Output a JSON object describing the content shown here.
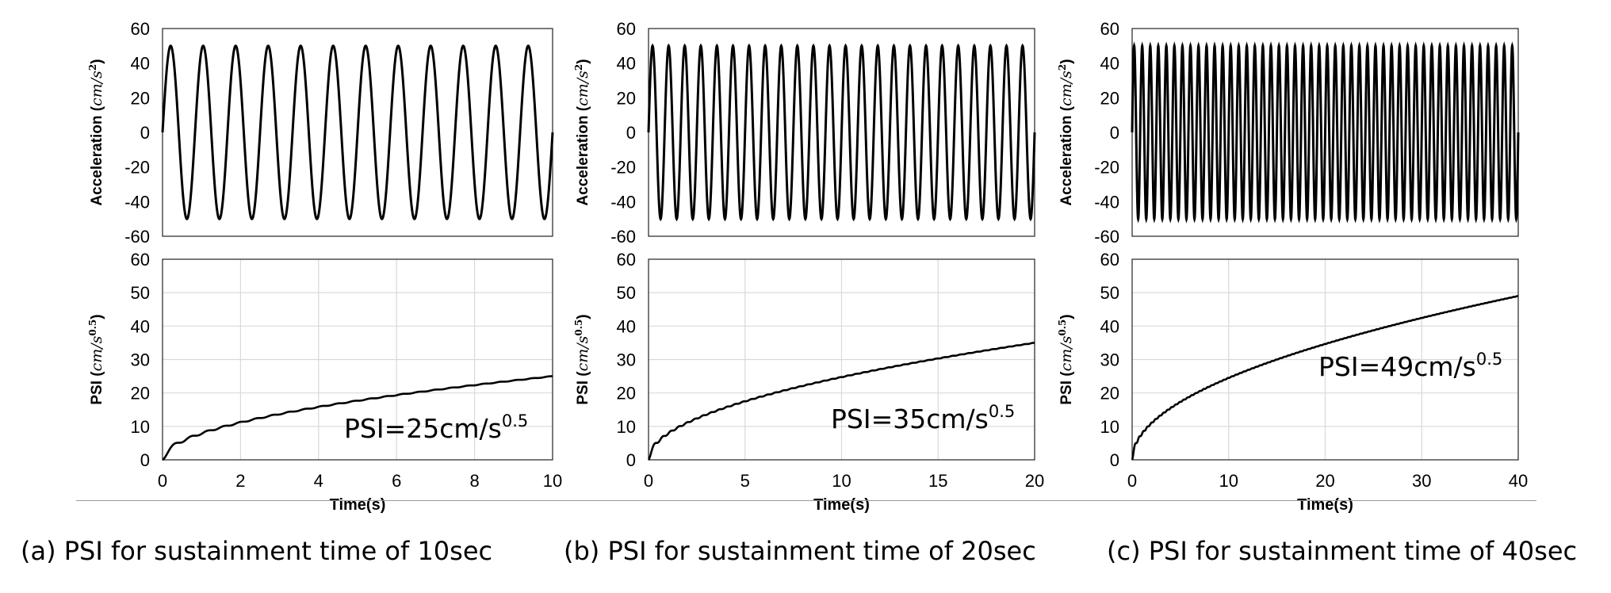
{
  "chart_data": [
    {
      "panel": "a",
      "type": "line",
      "title": "",
      "acceleration": {
        "ylabel": "Acceleration (cm/s²)",
        "ylim": [
          -60,
          60
        ],
        "yticks": [
          "60",
          "40",
          "20",
          "0",
          "-20",
          "-40",
          "-60"
        ],
        "amplitude": 50,
        "cycles": 12,
        "xlim": [
          0,
          10
        ]
      },
      "psi": {
        "ylabel": "PSI (cm/s^0.5)",
        "xlabel": "Time(s)",
        "ylim": [
          0,
          60
        ],
        "yticks": [
          "60",
          "50",
          "40",
          "30",
          "20",
          "10",
          "0"
        ],
        "xlim": [
          0,
          10
        ],
        "xticks": [
          "0",
          "2",
          "4",
          "6",
          "8",
          "10"
        ],
        "final_value": 25,
        "annotation": {
          "text": "PSI=25cm/s",
          "sup": "0.5"
        }
      },
      "caption": "(a) PSI for sustainment time of 10sec"
    },
    {
      "panel": "b",
      "type": "line",
      "title": "",
      "acceleration": {
        "ylabel": "Acceleration (cm/s²)",
        "ylim": [
          -60,
          60
        ],
        "yticks": [
          "60",
          "40",
          "20",
          "0",
          "-20",
          "-40",
          "-60"
        ],
        "amplitude": 50,
        "cycles": 24,
        "xlim": [
          0,
          20
        ]
      },
      "psi": {
        "ylabel": "PSI (cm/s^0.5)",
        "xlabel": "Time(s)",
        "ylim": [
          0,
          60
        ],
        "yticks": [
          "60",
          "50",
          "40",
          "30",
          "20",
          "10",
          "0"
        ],
        "xlim": [
          0,
          20
        ],
        "xticks": [
          "0",
          "5",
          "10",
          "15",
          "20"
        ],
        "final_value": 35,
        "annotation": {
          "text": "PSI=35cm/s",
          "sup": "0.5"
        }
      },
      "caption": "(b) PSI for sustainment time of 20sec"
    },
    {
      "panel": "c",
      "type": "line",
      "title": "",
      "acceleration": {
        "ylabel": "Acceleration (cm/s²)",
        "ylim": [
          -60,
          60
        ],
        "yticks": [
          "60",
          "40",
          "20",
          "0",
          "-20",
          "-40",
          "-60"
        ],
        "amplitude": 50,
        "cycles": 48,
        "xlim": [
          0,
          40
        ]
      },
      "psi": {
        "ylabel": "PSI (cm/s^0.5)",
        "xlabel": "Time(s)",
        "ylim": [
          0,
          60
        ],
        "yticks": [
          "60",
          "50",
          "40",
          "30",
          "20",
          "10",
          "0"
        ],
        "xlim": [
          0,
          40
        ],
        "xticks": [
          "0",
          "10",
          "20",
          "30",
          "40"
        ],
        "final_value": 49,
        "annotation": {
          "text": "PSI=49cm/s",
          "sup": "0.5"
        }
      },
      "caption": "(c) PSI for sustainment time of 40sec"
    }
  ]
}
